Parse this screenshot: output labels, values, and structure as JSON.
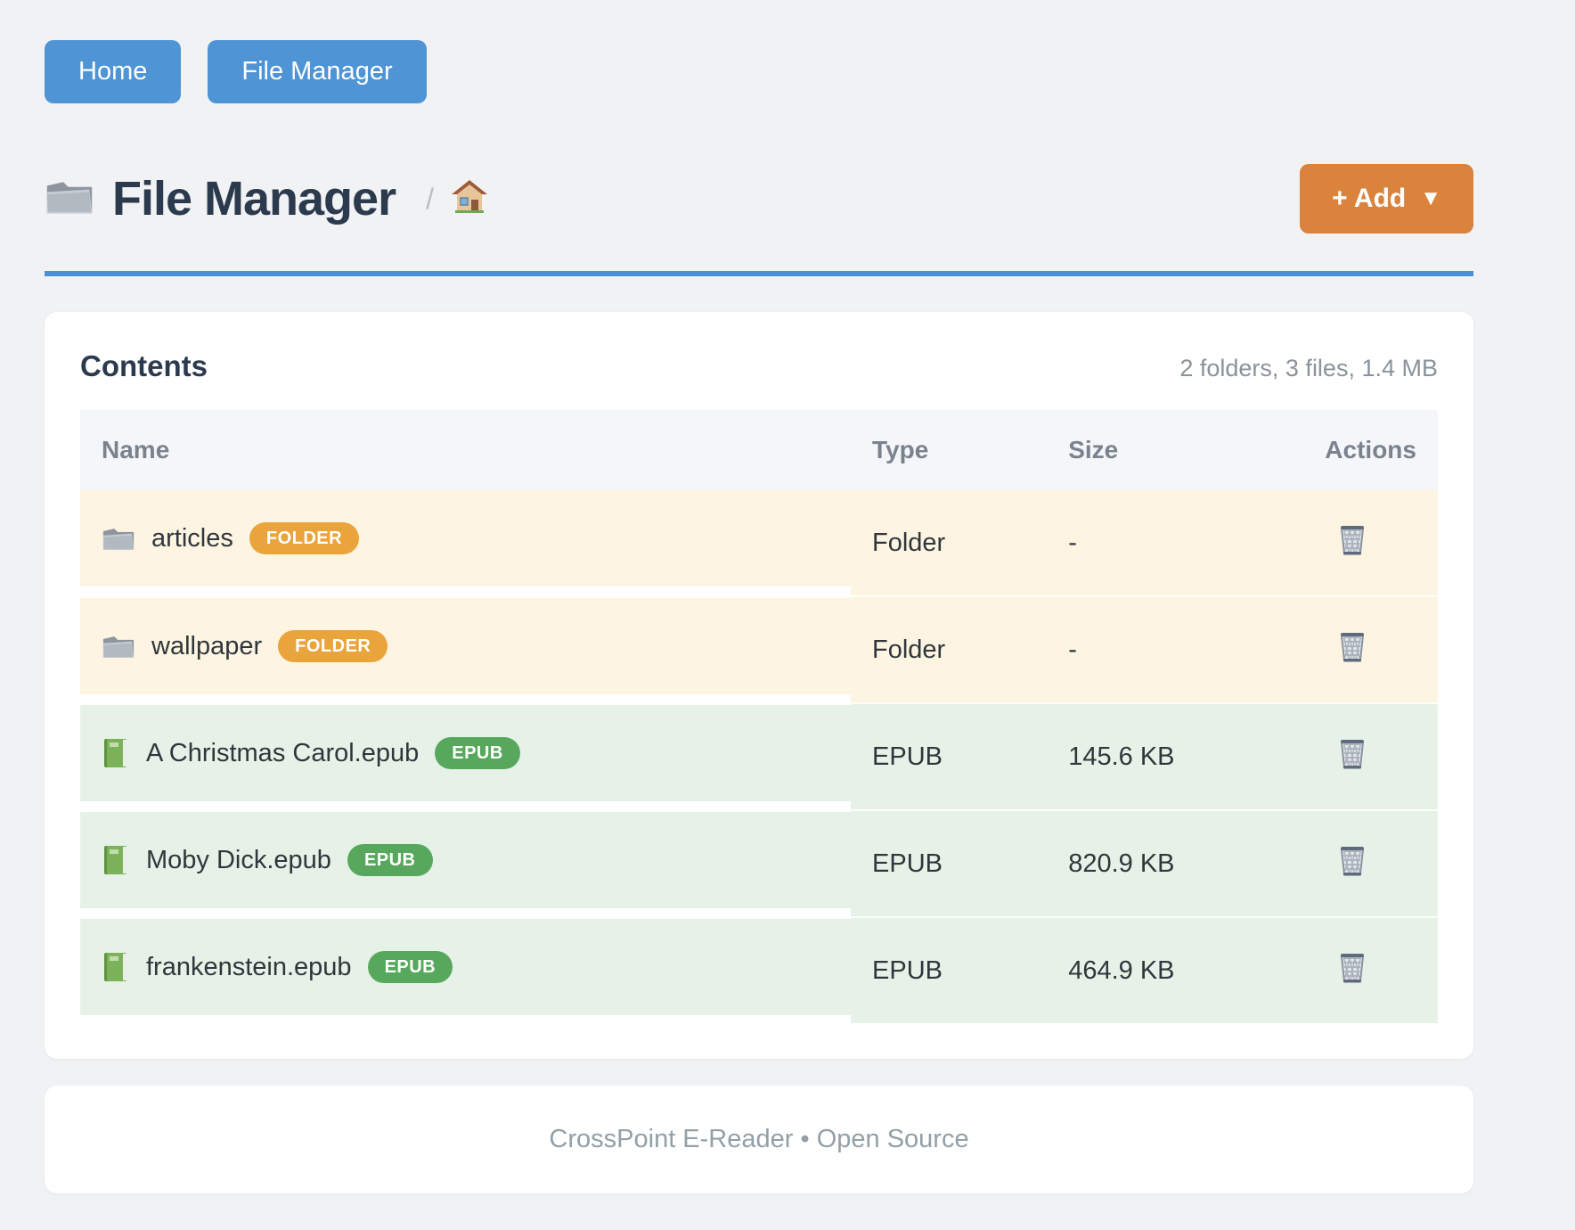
{
  "nav": {
    "items": [
      {
        "label": "Home"
      },
      {
        "label": "File Manager"
      }
    ]
  },
  "header": {
    "title": "File Manager",
    "breadcrumb_separator": "/",
    "breadcrumb_root_icon": "house-icon",
    "title_icon": "folder-icon",
    "add_button": {
      "label": "+ Add",
      "caret": "▼"
    }
  },
  "contents": {
    "title": "Contents",
    "summary": "2 folders, 3 files, 1.4 MB",
    "table": {
      "columns": [
        "Name",
        "Type",
        "Size",
        "Actions"
      ],
      "rows": [
        {
          "name": "articles",
          "kind": "folder",
          "icon": "folder-icon",
          "badge": "FOLDER",
          "type": "Folder",
          "size": "-"
        },
        {
          "name": "wallpaper",
          "kind": "folder",
          "icon": "folder-icon",
          "badge": "FOLDER",
          "type": "Folder",
          "size": "-"
        },
        {
          "name": "A Christmas Carol.epub",
          "kind": "epub",
          "icon": "green-book-icon",
          "badge": "EPUB",
          "type": "EPUB",
          "size": "145.6 KB"
        },
        {
          "name": "Moby Dick.epub",
          "kind": "epub",
          "icon": "green-book-icon",
          "badge": "EPUB",
          "type": "EPUB",
          "size": "820.9 KB"
        },
        {
          "name": "frankenstein.epub",
          "kind": "epub",
          "icon": "green-book-icon",
          "badge": "EPUB",
          "type": "EPUB",
          "size": "464.9 KB"
        }
      ],
      "action_icon": "trash-icon"
    }
  },
  "footer": {
    "text": "CrossPoint E-Reader • Open Source"
  },
  "colors": {
    "page_background": "#f1f2f4",
    "nav_button": "#4f94d5",
    "header_rule": "#4a90d9",
    "add_button": "#d9833c",
    "heading_text": "#2c3a4d",
    "folder_row": "#fdf5e2",
    "epub_row": "#e6f2e7",
    "folder_badge": "#e9a43c",
    "epub_badge": "#57a85c"
  }
}
